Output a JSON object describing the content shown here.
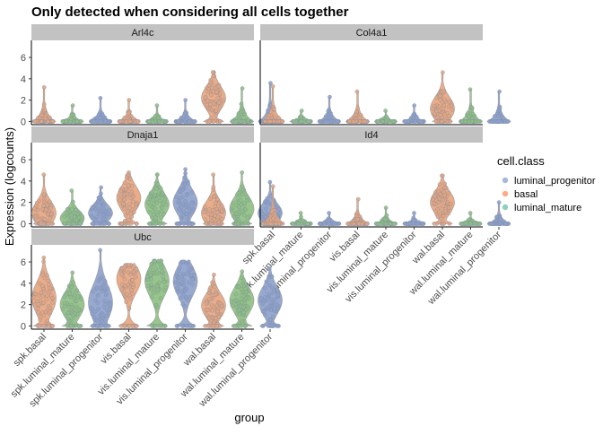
{
  "chart_data": {
    "type": "violin",
    "title": "Only detected when considering all cells together",
    "xlabel": "group",
    "ylabel": "Expression (logcounts)",
    "ylim": [
      -0.3,
      7.6
    ],
    "yticks": [
      0,
      2,
      4,
      6
    ],
    "categories": [
      "spk.basal",
      "spk.luminal_mature",
      "spk.luminal_progenitor",
      "vis.basal",
      "vis.luminal_mature",
      "vis.luminal_progenitor",
      "wal.basal",
      "wal.luminal_mature",
      "wal.luminal_progenitor"
    ],
    "category_class": [
      "basal",
      "luminal_mature",
      "luminal_progenitor",
      "basal",
      "luminal_mature",
      "luminal_progenitor",
      "basal",
      "luminal_mature",
      "luminal_progenitor"
    ],
    "legend": {
      "title": "cell.class",
      "entries": [
        {
          "label": "luminal_progenitor",
          "color": "#8DA0CB"
        },
        {
          "label": "basal",
          "color": "#FC8D62"
        },
        {
          "label": "luminal_mature",
          "color": "#66C2A5"
        }
      ]
    },
    "colors": {
      "luminal_progenitor": "#8DA0CB",
      "basal": "#E9A37A",
      "luminal_mature": "#8DBF7E",
      "strip": "#c2c2c2"
    },
    "panels": [
      {
        "gene": "Arl4c",
        "max": [
          3.2,
          1.5,
          2.2,
          2.0,
          1.5,
          2.0,
          4.6,
          3.1,
          3.6
        ],
        "median": [
          0,
          0,
          0,
          0,
          0,
          0,
          2.2,
          0,
          0
        ]
      },
      {
        "gene": "Col4a1",
        "max": [
          3.3,
          1.0,
          2.3,
          2.8,
          1.0,
          1.5,
          4.6,
          3.0,
          2.8
        ],
        "median": [
          0,
          0,
          0,
          0,
          0,
          0,
          1.2,
          0,
          0
        ]
      },
      {
        "gene": "Dnaja1",
        "max": [
          4.6,
          3.1,
          3.4,
          4.8,
          4.6,
          5.1,
          4.6,
          4.8,
          3.9
        ],
        "median": [
          1.0,
          0.5,
          1.0,
          2.4,
          1.8,
          2.0,
          1.0,
          1.4,
          1.0
        ]
      },
      {
        "gene": "Id4",
        "max": [
          3.5,
          1.0,
          1.0,
          2.3,
          1.5,
          1.0,
          4.5,
          1.0,
          2.0
        ],
        "median": [
          0,
          0,
          0,
          0,
          0,
          0,
          2.0,
          0,
          0
        ]
      },
      {
        "gene": "Ubc",
        "max": [
          6.4,
          5.0,
          7.1,
          5.7,
          6.1,
          6.0,
          4.8,
          5.1,
          5.4
        ],
        "median": [
          2.6,
          2.0,
          2.2,
          4.4,
          4.2,
          4.2,
          1.9,
          2.4,
          2.4
        ]
      }
    ]
  }
}
